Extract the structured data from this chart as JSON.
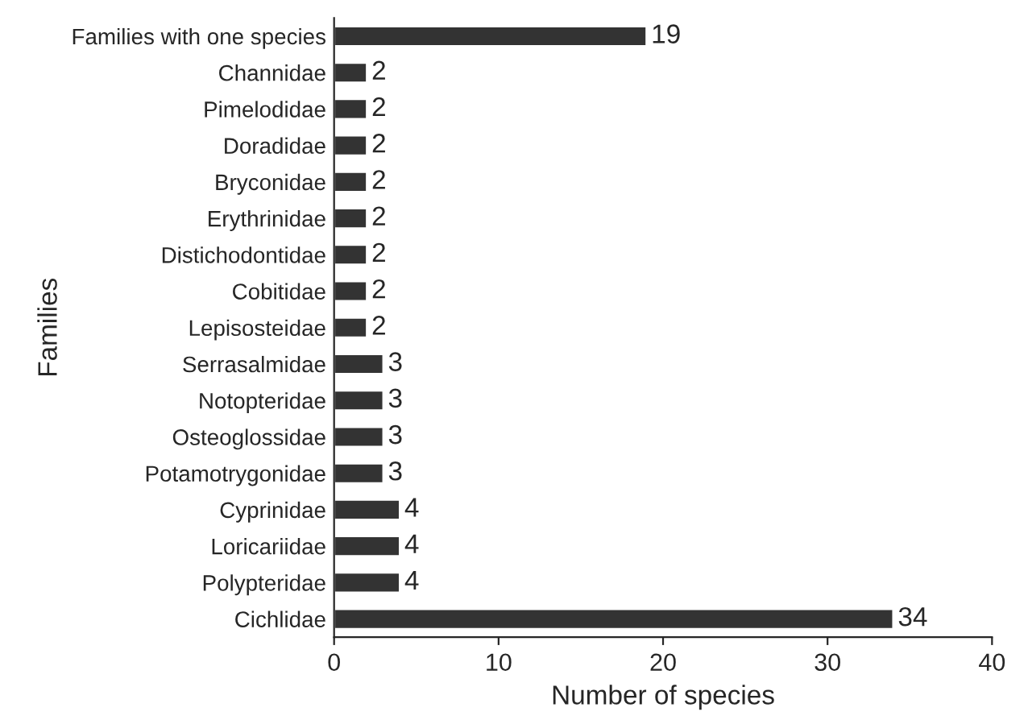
{
  "chart_data": {
    "type": "bar",
    "orientation": "horizontal",
    "xlabel": "Number of species",
    "ylabel": "Families",
    "categories": [
      "Families with one species",
      "Channidae",
      "Pimelodidae",
      "Doradidae",
      "Bryconidae",
      "Erythrinidae",
      "Distichodontidae",
      "Cobitidae",
      "Lepisosteidae",
      "Serrasalmidae",
      "Notopteridae",
      "Osteoglossidae",
      "Potamotrygonidae",
      "Cyprinidae",
      "Loricariidae",
      "Polypteridae",
      "Cichlidae"
    ],
    "values": [
      19,
      2,
      2,
      2,
      2,
      2,
      2,
      2,
      2,
      3,
      3,
      3,
      3,
      4,
      4,
      4,
      34
    ],
    "color": "#333333",
    "xlim": [
      0,
      40
    ],
    "xticks": [
      0,
      10,
      20,
      30,
      40
    ],
    "data_labels": true,
    "grid": false,
    "legend": false
  }
}
